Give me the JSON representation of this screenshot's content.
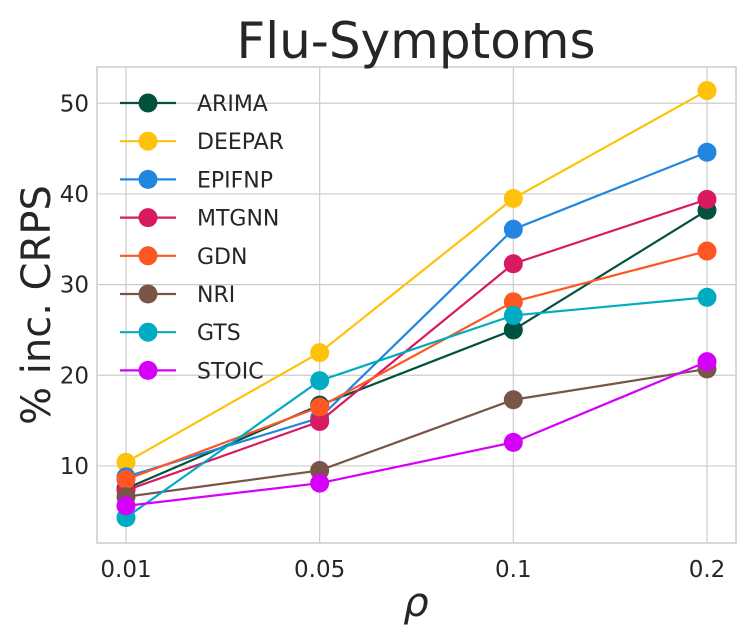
{
  "chart_data": {
    "type": "line",
    "title": "Flu-Symptoms",
    "xlabel": "ρ",
    "ylabel": "% inc. CRPS",
    "categories": [
      "0.01",
      "0.05",
      "0.1",
      "0.2"
    ],
    "ylim": [
      1.5,
      54
    ],
    "yticks": [
      "10",
      "20",
      "30",
      "40",
      "50"
    ],
    "grid": true,
    "legend_position": "top-left",
    "series": [
      {
        "name": "ARIMA",
        "color": "#00513d",
        "values": [
          7.5,
          16.7,
          25.0,
          38.2
        ]
      },
      {
        "name": "DEEPAR",
        "color": "#ffc20a",
        "values": [
          10.4,
          22.5,
          39.5,
          51.4
        ]
      },
      {
        "name": "EPIFNP",
        "color": "#2286e0",
        "values": [
          8.8,
          15.3,
          36.1,
          44.6
        ]
      },
      {
        "name": "MTGNN",
        "color": "#d81b60",
        "values": [
          7.3,
          14.9,
          32.3,
          39.4
        ]
      },
      {
        "name": "GDN",
        "color": "#fe5723",
        "values": [
          8.5,
          16.5,
          28.1,
          33.7
        ]
      },
      {
        "name": "NRI",
        "color": "#795548",
        "values": [
          6.6,
          9.5,
          17.3,
          20.7
        ]
      },
      {
        "name": "GTS",
        "color": "#00acc1",
        "values": [
          4.3,
          19.4,
          26.6,
          28.6
        ]
      },
      {
        "name": "STOIC",
        "color": "#d500f9",
        "values": [
          5.6,
          8.1,
          12.6,
          21.5
        ]
      }
    ]
  }
}
